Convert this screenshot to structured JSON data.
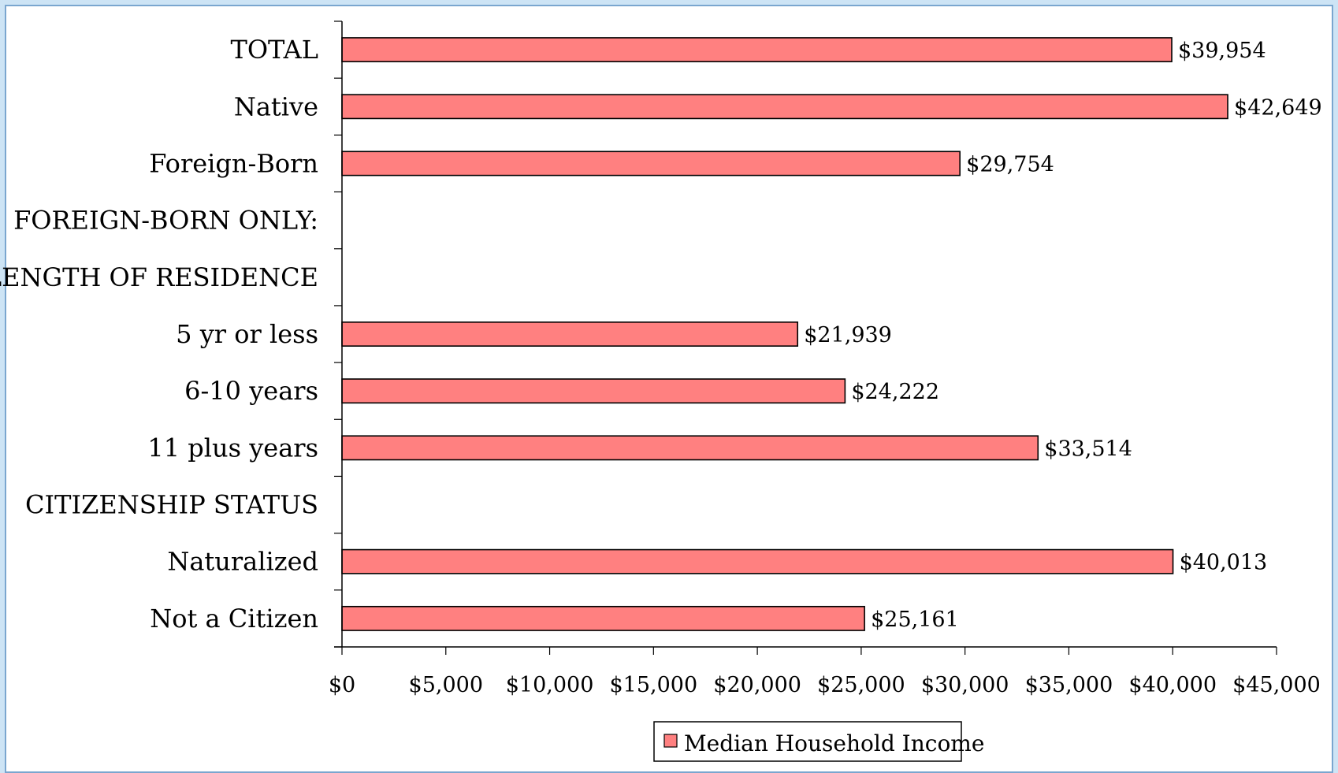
{
  "chart_data": {
    "type": "bar",
    "orientation": "horizontal",
    "categories": [
      "TOTAL",
      "Native",
      "Foreign-Born",
      "FOREIGN-BORN ONLY:",
      "LENGTH OF RESIDENCE",
      "5 yr or less",
      "6-10 years",
      "11 plus years",
      "CITIZENSHIP STATUS",
      "Naturalized",
      "Not a Citizen"
    ],
    "series": [
      {
        "name": "Median Household Income",
        "values": [
          39954,
          42649,
          29754,
          null,
          null,
          21939,
          24222,
          33514,
          null,
          40013,
          25161
        ],
        "labels": [
          "$39,954",
          "$42,649",
          "$29,754",
          "",
          "",
          "$21,939",
          "$24,222",
          "$33,514",
          "",
          "$40,013",
          "$25,161"
        ]
      }
    ],
    "xlim": [
      0,
      45000
    ],
    "x_ticks": [
      0,
      5000,
      10000,
      15000,
      20000,
      25000,
      30000,
      35000,
      40000,
      45000
    ],
    "x_tick_labels": [
      "$0",
      "$5,000",
      "$10,000",
      "$15,000",
      "$20,000",
      "$25,000",
      "$30,000",
      "$35,000",
      "$40,000",
      "$45,000"
    ],
    "title": "",
    "xlabel": "",
    "ylabel": "",
    "grid": false,
    "legend": {
      "position": "bottom",
      "entries": [
        "Median Household Income"
      ]
    },
    "colors": {
      "bar_fill": "#ff8080",
      "bar_stroke": "#000000",
      "frame_border": "#7aa6cf",
      "page_background": "#cde4f5"
    }
  }
}
